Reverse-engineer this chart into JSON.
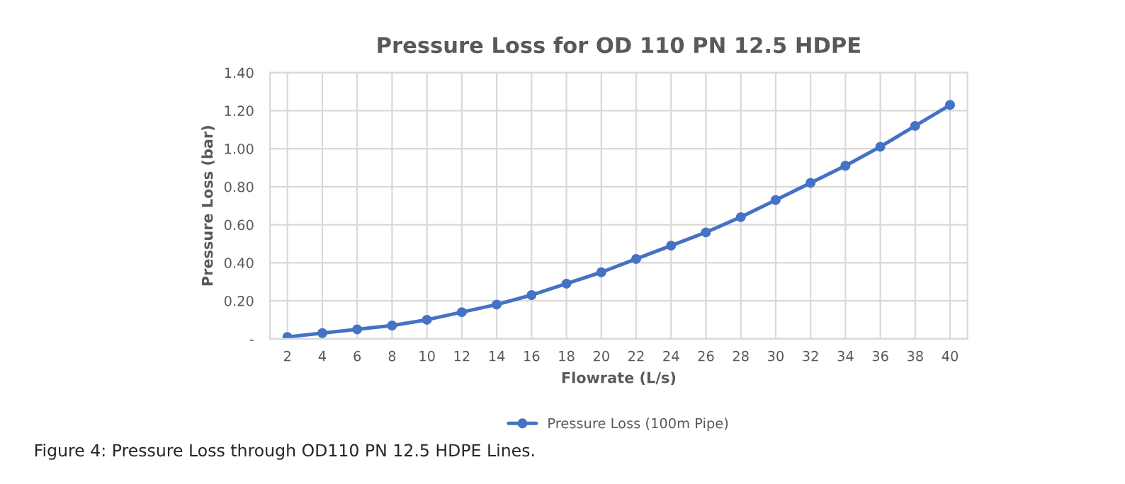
{
  "chart_data": {
    "type": "line",
    "title": "Pressure Loss for OD 110 PN 12.5 HDPE",
    "xlabel": "Flowrate (L/s)",
    "ylabel": "Pressure Loss (bar)",
    "categories": [
      "2",
      "4",
      "6",
      "8",
      "10",
      "12",
      "14",
      "16",
      "18",
      "20",
      "22",
      "24",
      "26",
      "28",
      "30",
      "32",
      "34",
      "36",
      "38",
      "40"
    ],
    "series": [
      {
        "name": "Pressure Loss (100m Pipe)",
        "color": "#4472c4",
        "values": [
          0.01,
          0.03,
          0.05,
          0.07,
          0.1,
          0.14,
          0.18,
          0.23,
          0.29,
          0.35,
          0.42,
          0.49,
          0.56,
          0.64,
          0.73,
          0.82,
          0.91,
          1.01,
          1.12,
          1.23
        ]
      }
    ],
    "ylim": [
      0,
      1.4
    ],
    "yticks": [
      {
        "value": 0,
        "label": "-"
      },
      {
        "value": 0.2,
        "label": "0.20"
      },
      {
        "value": 0.4,
        "label": "0.40"
      },
      {
        "value": 0.6,
        "label": "0.60"
      },
      {
        "value": 0.8,
        "label": "0.80"
      },
      {
        "value": 1.0,
        "label": "1.00"
      },
      {
        "value": 1.2,
        "label": "1.20"
      },
      {
        "value": 1.4,
        "label": "1.40"
      }
    ],
    "grid": true,
    "legend": "bottom",
    "marker": "circle",
    "line_style": "solid",
    "annotations": [
      "Figure 4: Pressure Loss through OD110 PN 12.5 HDPE Lines."
    ]
  }
}
